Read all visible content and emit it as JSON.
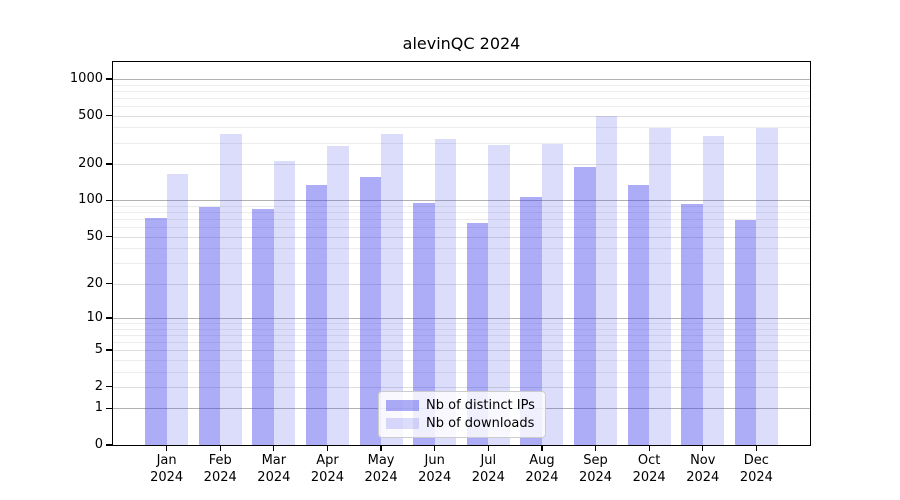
{
  "title": "alevinQC 2024",
  "chart_data": {
    "type": "bar",
    "title": "alevinQC 2024",
    "categories": [
      "Jan 2024",
      "Feb 2024",
      "Mar 2024",
      "Apr 2024",
      "May 2024",
      "Jun 2024",
      "Jul 2024",
      "Aug 2024",
      "Sep 2024",
      "Oct 2024",
      "Nov 2024",
      "Dec 2024"
    ],
    "series": [
      {
        "name": "Nb of distinct IPs",
        "color": "rgba(60,60,235,0.42)",
        "base_color": "#3c3ceb",
        "values": [
          72,
          88,
          85,
          134,
          157,
          95,
          65,
          107,
          190,
          134,
          93,
          69
        ]
      },
      {
        "name": "Nb of downloads",
        "color": "rgba(60,60,235,0.18)",
        "base_color": "#3c3ceb",
        "values": [
          165,
          350,
          212,
          280,
          350,
          320,
          287,
          290,
          500,
          392,
          340,
          397
        ]
      }
    ],
    "y_scale": "log10(1+v)",
    "y_ticks": [
      0,
      1,
      2,
      5,
      10,
      20,
      50,
      100,
      200,
      500,
      1000
    ],
    "y_major_gridlines": [
      1,
      10,
      100,
      1000
    ],
    "ylim": [
      0,
      1380
    ],
    "xlabel": "",
    "ylabel": "",
    "grid": "on",
    "legend_position": "lower center",
    "colors": {
      "bar_ips": "#adadf6",
      "bar_downloads": "#dcdcf9",
      "grid_major": "#b2b2b2",
      "grid_minor": "#ececec",
      "frame": "#000000"
    }
  },
  "legend": {
    "items": [
      {
        "label": "Nb of distinct IPs"
      },
      {
        "label": "Nb of downloads"
      }
    ]
  }
}
